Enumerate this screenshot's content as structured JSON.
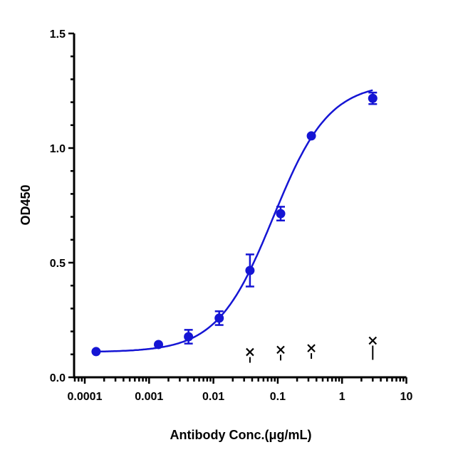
{
  "chart_data": {
    "type": "scatter",
    "title": "",
    "xlabel": "Antibody Conc.(μg/mL)",
    "ylabel": "OD450",
    "xscale": "log",
    "xlim": [
      7e-05,
      10
    ],
    "ylim": [
      0,
      1.5
    ],
    "x_ticks": [
      "0.0001",
      "0.001",
      "0.01",
      "0.1",
      "1",
      "10"
    ],
    "y_ticks": [
      "0.0",
      "0.5",
      "1.0",
      "1.5"
    ],
    "grid": false,
    "legend": "none",
    "series": [
      {
        "marker": "circle",
        "color": "#1515d4",
        "fit_curve": true,
        "x": [
          0.00015,
          0.0014,
          0.0041,
          0.0123,
          0.037,
          0.111,
          0.333,
          3
        ],
        "y": [
          0.112,
          0.143,
          0.177,
          0.258,
          0.466,
          0.714,
          1.053,
          1.217
        ],
        "error": [
          0.0,
          0.0,
          0.03,
          0.03,
          0.07,
          0.03,
          0.0,
          0.025
        ]
      },
      {
        "marker": "cross",
        "color": "#000000",
        "x": [
          0.037,
          0.111,
          0.333,
          3
        ],
        "y": [
          0.11,
          0.12,
          0.127,
          0.16
        ]
      }
    ]
  }
}
